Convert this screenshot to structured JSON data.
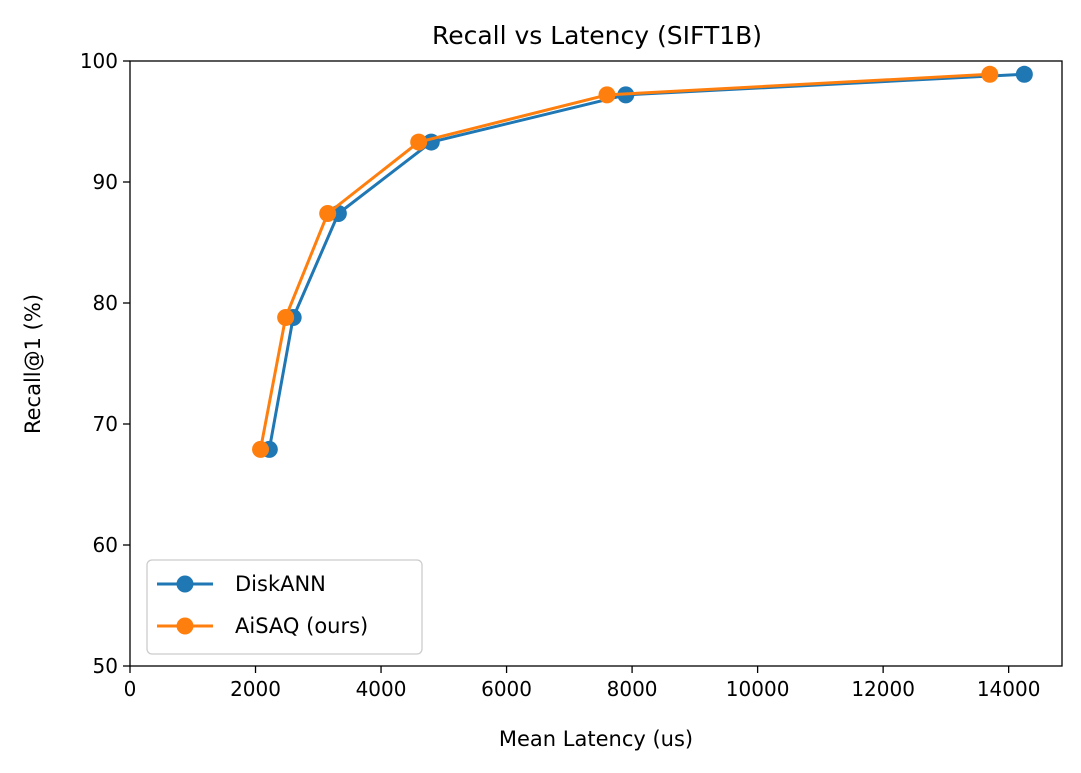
{
  "chart_data": {
    "type": "line",
    "title": "Recall vs Latency (SIFT1B)",
    "xlabel": "Mean Latency (us)",
    "ylabel": "Recall@1 (%)",
    "xlim": [
      0,
      14850
    ],
    "ylim": [
      50,
      100
    ],
    "xticks": [
      0,
      2000,
      4000,
      6000,
      8000,
      10000,
      12000,
      14000
    ],
    "yticks": [
      50,
      60,
      70,
      80,
      90,
      100
    ],
    "grid": false,
    "legend_position": "lower-left",
    "series": [
      {
        "name": "DiskANN",
        "color": "#1f77b4",
        "marker": "circle",
        "x": [
          2220,
          2600,
          3320,
          4800,
          7900,
          14250
        ],
        "y": [
          67.9,
          78.8,
          87.4,
          93.3,
          97.2,
          98.9
        ]
      },
      {
        "name": "AiSAQ (ours)",
        "color": "#ff7f0e",
        "marker": "circle",
        "x": [
          2080,
          2480,
          3150,
          4600,
          7600,
          13700
        ],
        "y": [
          67.9,
          78.8,
          87.4,
          93.3,
          97.2,
          98.9
        ]
      }
    ]
  }
}
